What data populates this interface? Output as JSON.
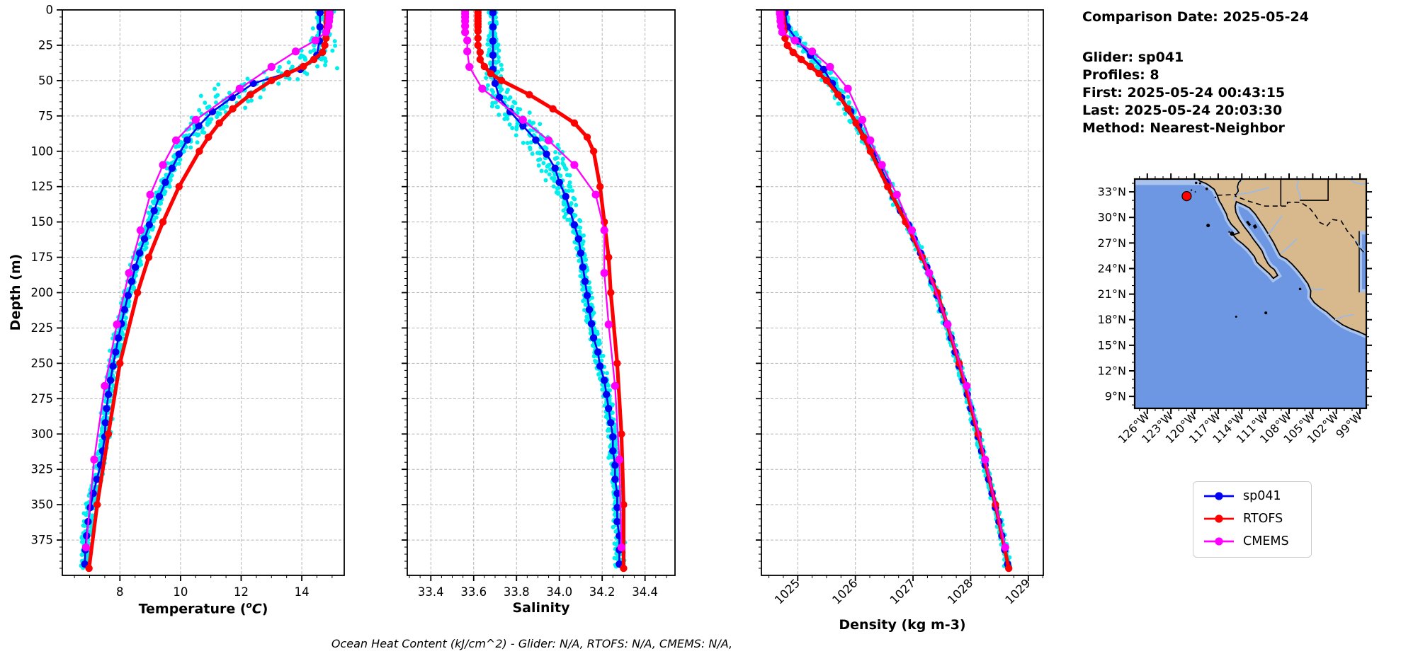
{
  "info_panel": {
    "comparison_date": "Comparison Date: 2025-05-24",
    "glider": "Glider: sp041",
    "profiles": "Profiles: 8",
    "first": "First: 2025-05-24 00:43:15",
    "last": "Last: 2025-05-24 20:03:30",
    "method": "Method: Nearest-Neighbor"
  },
  "footer_note": "Ocean Heat Content (kJ/cm^2) - Glider: N/A,  RTOFS: N/A,  CMEMS: N/A,",
  "legend": {
    "items": [
      {
        "label": "sp041",
        "color": "#0000f5"
      },
      {
        "label": "RTOFS",
        "color": "#ff0000"
      },
      {
        "label": "CMEMS",
        "color": "#ff00ff"
      }
    ]
  },
  "colors": {
    "glider_line": "#0000f5",
    "rtofs_line": "#ff0000",
    "cmems_line": "#ff00ff",
    "glider_scatter": "#00eeee",
    "grid": "#b5b5b5",
    "map_ocean": "#6d97e2",
    "map_land": "#d8b88d",
    "map_shelf": "#a9c3ec",
    "map_river": "#97bbea",
    "map_marker": "#ff0000"
  },
  "chart_data": [
    {
      "name": "temperature-profile",
      "type": "line",
      "xlabel": "Temperature (°C)",
      "xlabel_parts": {
        "pre": "Temperature (",
        "sup": "o",
        "italic": "C",
        "post": ")"
      },
      "ylabel": "Depth (m)",
      "xlim": [
        6.1,
        15.4
      ],
      "ylim": [
        400,
        0
      ],
      "xticks": [
        8,
        10,
        12,
        14
      ],
      "xtick_labels": [
        "8",
        "10",
        "12",
        "14"
      ],
      "xminor_step": 0.5,
      "yticks": [
        0,
        25,
        50,
        75,
        100,
        125,
        150,
        175,
        200,
        225,
        250,
        275,
        300,
        325,
        350,
        375
      ],
      "yminor_step": 5,
      "grid": true,
      "rotate_xlabels": false,
      "show_ytick_labels": true,
      "series": [
        {
          "name": "sp041",
          "color": "#0000f5",
          "line_width": 2.6,
          "marker_r": 5.2,
          "depths": [
            2,
            12,
            22,
            32,
            42,
            52,
            62,
            72,
            82,
            92,
            102,
            112,
            122,
            132,
            142,
            152,
            162,
            172,
            182,
            192,
            202,
            212,
            222,
            232,
            242,
            252,
            262,
            272,
            282,
            292,
            302,
            312,
            322,
            332,
            342,
            352,
            362,
            372,
            382,
            392
          ],
          "values": [
            14.6,
            14.6,
            14.58,
            14.5,
            13.95,
            12.4,
            11.7,
            11.05,
            10.6,
            10.22,
            9.95,
            9.72,
            9.5,
            9.3,
            9.13,
            8.97,
            8.81,
            8.65,
            8.51,
            8.39,
            8.27,
            8.15,
            8.05,
            7.95,
            7.86,
            7.77,
            7.69,
            7.62,
            7.56,
            7.52,
            7.5,
            7.43,
            7.36,
            7.24,
            7.12,
            7.02,
            6.95,
            6.9,
            6.86,
            6.84
          ]
        },
        {
          "name": "RTOFS",
          "color": "#ff0000",
          "line_width": 5.2,
          "marker_r": 5.2,
          "depths": [
            0,
            2,
            4,
            6,
            8,
            10,
            12,
            15,
            20,
            25,
            30,
            35,
            40,
            45,
            50,
            60,
            70,
            80,
            90,
            100,
            125,
            150,
            175,
            200,
            250,
            300,
            350,
            395
          ],
          "values": [
            14.85,
            14.85,
            14.85,
            14.85,
            14.84,
            14.84,
            14.83,
            14.82,
            14.8,
            14.76,
            14.68,
            14.4,
            14.05,
            13.52,
            13.0,
            12.3,
            11.72,
            11.28,
            10.92,
            10.62,
            9.95,
            9.42,
            8.95,
            8.58,
            8.0,
            7.62,
            7.25,
            6.98
          ]
        },
        {
          "name": "CMEMS",
          "color": "#ff00ff",
          "line_width": 2.3,
          "marker_r": 5.6,
          "depths": [
            0.5,
            2.6,
            5.1,
            7.9,
            11.4,
            15.8,
            21.6,
            29.4,
            40.3,
            55.7,
            77.8,
            92.3,
            109.7,
            130.7,
            155.9,
            186.1,
            222.5,
            266.0,
            318.1,
            380.2
          ],
          "values": [
            14.92,
            14.92,
            14.91,
            14.9,
            14.88,
            14.8,
            14.45,
            13.8,
            13.0,
            11.95,
            10.5,
            9.85,
            9.42,
            9.0,
            8.68,
            8.3,
            7.9,
            7.5,
            7.15,
            6.88
          ]
        }
      ],
      "scatter": {
        "name": "glider-raw-profiles",
        "profiles": 8,
        "color": "#00eeee",
        "base": 0.1,
        "spread": 0.5,
        "center_depth": 52,
        "width": 30
      }
    },
    {
      "name": "salinity-profile",
      "type": "line",
      "xlabel": "Salinity",
      "ylabel": "Depth (m)",
      "xlim": [
        33.29,
        34.54
      ],
      "ylim": [
        400,
        0
      ],
      "xticks": [
        33.4,
        33.6,
        33.8,
        34.0,
        34.2,
        34.4
      ],
      "xtick_labels": [
        "33.4",
        "33.6",
        "33.8",
        "34.0",
        "34.2",
        "34.4"
      ],
      "xminor_step": 0.05,
      "yticks": [
        0,
        25,
        50,
        75,
        100,
        125,
        150,
        175,
        200,
        225,
        250,
        275,
        300,
        325,
        350,
        375
      ],
      "yminor_step": 5,
      "grid": true,
      "rotate_xlabels": false,
      "show_ytick_labels": false,
      "series": [
        {
          "name": "sp041",
          "color": "#0000f5",
          "line_width": 2.6,
          "marker_r": 5.2,
          "depths": [
            2,
            12,
            22,
            32,
            42,
            52,
            62,
            72,
            82,
            92,
            102,
            112,
            122,
            132,
            142,
            152,
            162,
            172,
            182,
            192,
            202,
            212,
            222,
            232,
            242,
            252,
            262,
            272,
            282,
            292,
            302,
            312,
            322,
            332,
            342,
            352,
            362,
            372,
            382,
            392
          ],
          "values": [
            33.69,
            33.69,
            33.69,
            33.69,
            33.69,
            33.7,
            33.72,
            33.77,
            33.83,
            33.89,
            33.94,
            33.98,
            34.0,
            34.03,
            34.05,
            34.07,
            34.09,
            34.1,
            34.11,
            34.12,
            34.13,
            34.14,
            34.15,
            34.16,
            34.18,
            34.19,
            34.21,
            34.22,
            34.23,
            34.24,
            34.25,
            34.25,
            34.26,
            34.26,
            34.27,
            34.27,
            34.27,
            34.28,
            34.28,
            34.28
          ]
        },
        {
          "name": "RTOFS",
          "color": "#ff0000",
          "line_width": 5.2,
          "marker_r": 5.2,
          "depths": [
            0,
            2,
            4,
            6,
            8,
            10,
            12,
            15,
            20,
            25,
            30,
            35,
            40,
            45,
            50,
            60,
            70,
            80,
            90,
            100,
            125,
            150,
            175,
            200,
            250,
            300,
            350,
            395
          ],
          "values": [
            33.62,
            33.62,
            33.62,
            33.62,
            33.62,
            33.62,
            33.62,
            33.62,
            33.62,
            33.62,
            33.63,
            33.63,
            33.65,
            33.68,
            33.73,
            33.86,
            33.97,
            34.07,
            34.13,
            34.16,
            34.19,
            34.21,
            34.23,
            34.24,
            34.27,
            34.29,
            34.3,
            34.3
          ]
        },
        {
          "name": "CMEMS",
          "color": "#ff00ff",
          "line_width": 2.3,
          "marker_r": 5.6,
          "depths": [
            0.5,
            2.6,
            5.1,
            7.9,
            11.4,
            15.8,
            21.6,
            29.4,
            40.3,
            55.7,
            77.8,
            92.3,
            109.7,
            130.7,
            155.9,
            186.1,
            222.5,
            266.0,
            318.1,
            380.2
          ],
          "values": [
            33.56,
            33.56,
            33.56,
            33.56,
            33.56,
            33.56,
            33.57,
            33.57,
            33.58,
            33.64,
            33.83,
            33.95,
            34.07,
            34.17,
            34.21,
            34.21,
            34.23,
            34.26,
            34.28,
            34.29
          ]
        }
      ],
      "scatter": {
        "name": "glider-raw-profiles",
        "profiles": 8,
        "color": "#00eeee",
        "base": 0.013,
        "spread": 0.048,
        "center_depth": 90,
        "width": 38
      }
    },
    {
      "name": "density-profile",
      "type": "line",
      "xlabel": "Density (kg m-3)",
      "ylabel": "Depth (m)",
      "xlim": [
        1024.37,
        1029.26
      ],
      "ylim": [
        400,
        0
      ],
      "xticks": [
        1025,
        1026,
        1027,
        1028,
        1029
      ],
      "xtick_labels": [
        "1025",
        "1026",
        "1027",
        "1028",
        "1029"
      ],
      "xminor_step": 0.25,
      "yticks": [
        0,
        25,
        50,
        75,
        100,
        125,
        150,
        175,
        200,
        225,
        250,
        275,
        300,
        325,
        350,
        375
      ],
      "yminor_step": 5,
      "grid": true,
      "rotate_xlabels": true,
      "show_ytick_labels": false,
      "series": [
        {
          "name": "sp041",
          "color": "#0000f5",
          "line_width": 2.6,
          "marker_r": 5.2,
          "depths": [
            2,
            12,
            22,
            32,
            42,
            52,
            62,
            72,
            82,
            92,
            102,
            112,
            122,
            132,
            142,
            152,
            162,
            172,
            182,
            192,
            202,
            212,
            222,
            232,
            242,
            252,
            262,
            272,
            282,
            292,
            302,
            312,
            322,
            332,
            342,
            352,
            362,
            372,
            382,
            392
          ],
          "values": [
            1024.78,
            1024.82,
            1025.0,
            1025.22,
            1025.45,
            1025.6,
            1025.76,
            1025.92,
            1026.06,
            1026.2,
            1026.32,
            1026.44,
            1026.56,
            1026.66,
            1026.78,
            1026.92,
            1027.02,
            1027.13,
            1027.24,
            1027.33,
            1027.42,
            1027.5,
            1027.58,
            1027.66,
            1027.73,
            1027.8,
            1027.87,
            1027.94,
            1028.0,
            1028.06,
            1028.13,
            1028.19,
            1028.25,
            1028.31,
            1028.37,
            1028.43,
            1028.49,
            1028.54,
            1028.59,
            1028.64
          ]
        },
        {
          "name": "RTOFS",
          "color": "#ff0000",
          "line_width": 5.2,
          "marker_r": 5.2,
          "depths": [
            0,
            2,
            4,
            6,
            8,
            10,
            12,
            15,
            20,
            25,
            30,
            35,
            40,
            45,
            50,
            60,
            70,
            80,
            90,
            100,
            125,
            150,
            175,
            200,
            250,
            300,
            350,
            395
          ],
          "values": [
            1024.72,
            1024.72,
            1024.72,
            1024.73,
            1024.73,
            1024.74,
            1024.75,
            1024.76,
            1024.78,
            1024.82,
            1024.92,
            1025.06,
            1025.22,
            1025.37,
            1025.5,
            1025.7,
            1025.87,
            1026.01,
            1026.14,
            1026.26,
            1026.56,
            1026.87,
            1027.16,
            1027.42,
            1027.8,
            1028.13,
            1028.43,
            1028.66
          ]
        },
        {
          "name": "CMEMS",
          "color": "#ff00ff",
          "line_width": 2.3,
          "marker_r": 5.6,
          "depths": [
            0.5,
            2.6,
            5.1,
            7.9,
            11.4,
            15.8,
            21.6,
            29.4,
            40.3,
            55.7,
            77.8,
            92.3,
            109.7,
            130.7,
            155.9,
            186.1,
            222.5,
            266.0,
            318.1,
            380.2
          ],
          "values": [
            1024.69,
            1024.69,
            1024.7,
            1024.7,
            1024.71,
            1024.73,
            1024.95,
            1025.25,
            1025.56,
            1025.87,
            1026.12,
            1026.26,
            1026.46,
            1026.72,
            1026.98,
            1027.28,
            1027.6,
            1027.93,
            1028.25,
            1028.6
          ]
        }
      ],
      "scatter": {
        "name": "glider-raw-profiles",
        "profiles": 8,
        "color": "#00eeee",
        "base": 0.03,
        "spread": 0.045,
        "center_depth": 60,
        "width": 45
      }
    }
  ],
  "map": {
    "name": "glider-location-map",
    "lat_ticks": [
      {
        "label": "33°N",
        "value": 33
      },
      {
        "label": "30°N",
        "value": 30
      },
      {
        "label": "27°N",
        "value": 27
      },
      {
        "label": "24°N",
        "value": 24
      },
      {
        "label": "21°N",
        "value": 21
      },
      {
        "label": "18°N",
        "value": 18
      },
      {
        "label": "15°N",
        "value": 15
      },
      {
        "label": "12°N",
        "value": 12
      },
      {
        "label": "9°N",
        "value": 9
      }
    ],
    "lon_ticks": [
      {
        "label": "126°W",
        "value": -126
      },
      {
        "label": "123°W",
        "value": -123
      },
      {
        "label": "120°W",
        "value": -120
      },
      {
        "label": "117°W",
        "value": -117
      },
      {
        "label": "114°W",
        "value": -114
      },
      {
        "label": "111°W",
        "value": -111
      },
      {
        "label": "108°W",
        "value": -108
      },
      {
        "label": "105°W",
        "value": -105
      },
      {
        "label": "102°W",
        "value": -102
      },
      {
        "label": "99°W",
        "value": -99
      }
    ],
    "marker": {
      "lon": -121.0,
      "lat": 32.5
    }
  }
}
